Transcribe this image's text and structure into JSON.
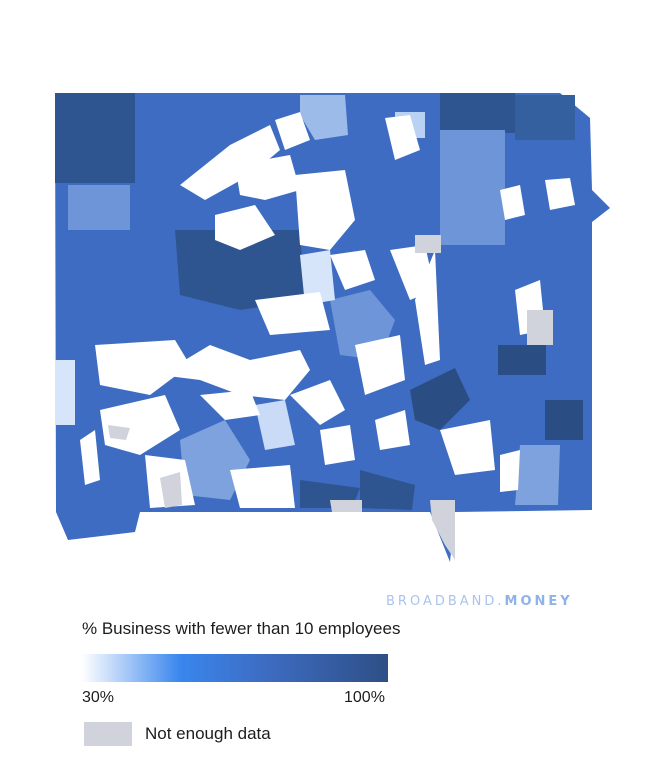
{
  "brand": {
    "part1": "BROADBAND",
    "sep": ".",
    "part2": "MONEY"
  },
  "legend": {
    "title": "% Business with fewer than 10 employees",
    "min_label": "30%",
    "max_label": "100%",
    "nodata_label": "Not enough data"
  },
  "colors": {
    "no_data": "#d0d2dc",
    "low": "#ffffff",
    "mid": "#3a86ee",
    "high": "#2e4f86"
  }
}
